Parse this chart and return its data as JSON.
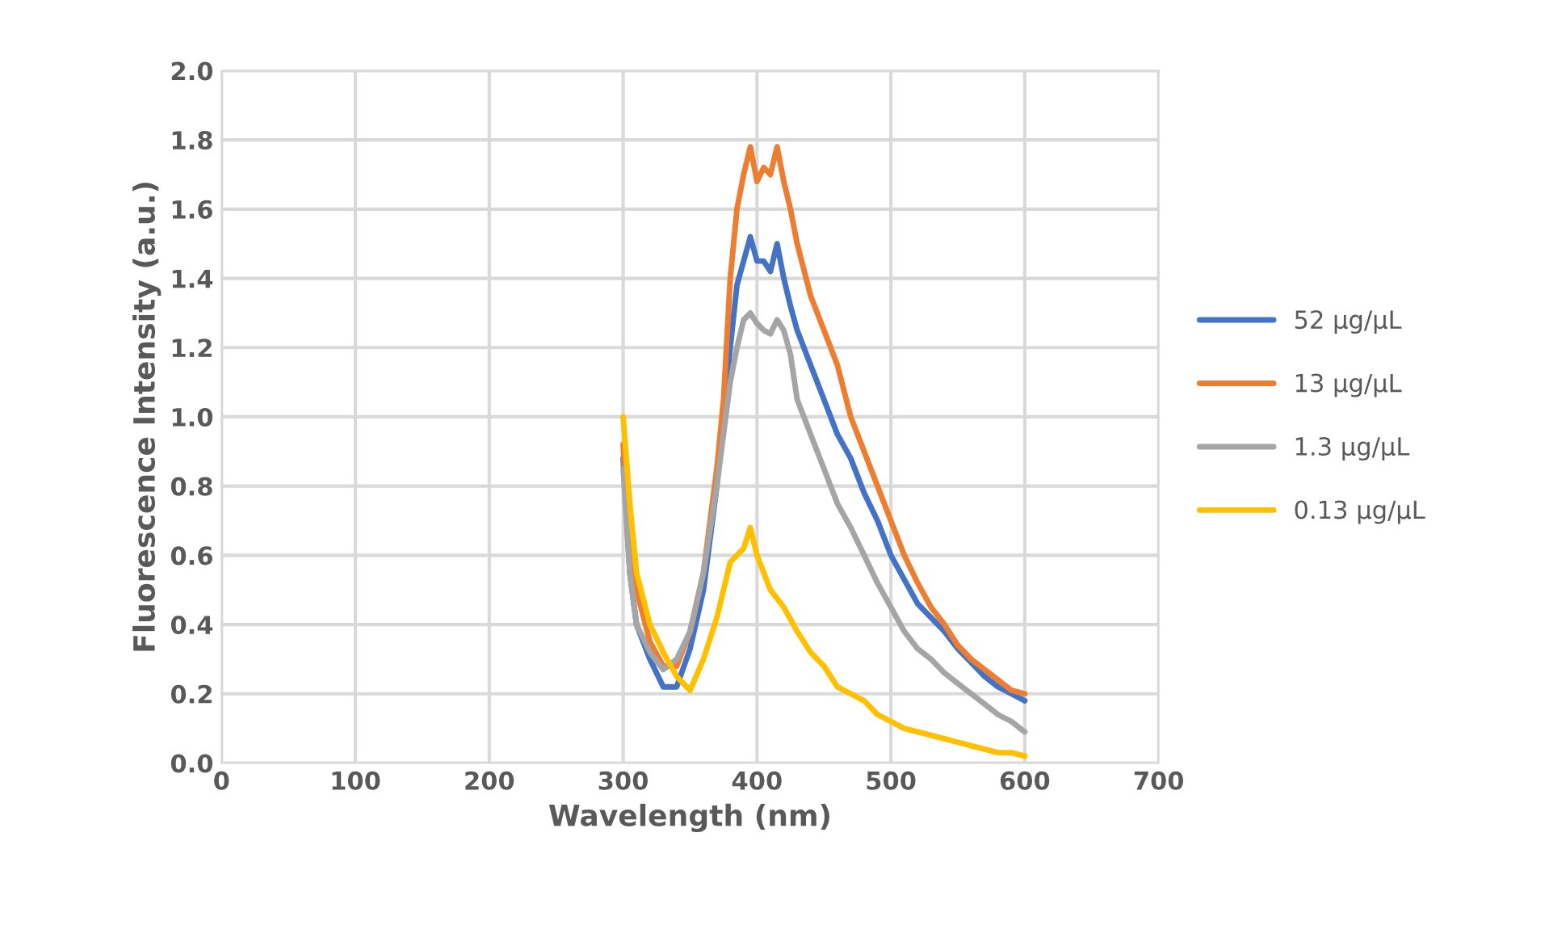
{
  "chart_data": {
    "type": "line",
    "xlabel": "Wavelength (nm)",
    "ylabel": "Fluorescence Intensity (a.u.)",
    "xlim": [
      0,
      700
    ],
    "xticks": [
      0,
      100,
      200,
      300,
      400,
      500,
      600,
      700
    ],
    "ylim": [
      0,
      2.0
    ],
    "yticks": [
      {
        "value": 0,
        "label": "0.0"
      },
      {
        "value": 0.2,
        "label": "0.2"
      },
      {
        "value": 0.4,
        "label": "0.4"
      },
      {
        "value": 0.6,
        "label": "0.6"
      },
      {
        "value": 0.8,
        "label": "0.8"
      },
      {
        "value": 1.0,
        "label": "1.0"
      },
      {
        "value": 1.2,
        "label": "1.2"
      },
      {
        "value": 1.4,
        "label": "1.4"
      },
      {
        "value": 1.6,
        "label": "1.6"
      },
      {
        "value": 1.8,
        "label": "1.8"
      },
      {
        "value": 2.0,
        "label": "2.0"
      }
    ],
    "grid": true,
    "legend": "right",
    "marker": "none",
    "line_style": "solid",
    "series": [
      {
        "name": "52 µg/µL",
        "color": "#4472c4",
        "x": [
          300,
          305,
          310,
          320,
          330,
          340,
          350,
          360,
          370,
          380,
          385,
          390,
          395,
          400,
          405,
          410,
          415,
          420,
          425,
          430,
          440,
          450,
          460,
          470,
          480,
          490,
          500,
          510,
          520,
          530,
          540,
          550,
          560,
          570,
          580,
          590,
          600
        ],
        "values": [
          0.88,
          0.55,
          0.4,
          0.3,
          0.22,
          0.22,
          0.33,
          0.5,
          0.8,
          1.2,
          1.38,
          1.45,
          1.52,
          1.45,
          1.45,
          1.42,
          1.5,
          1.4,
          1.32,
          1.25,
          1.15,
          1.05,
          0.95,
          0.88,
          0.78,
          0.7,
          0.6,
          0.53,
          0.46,
          0.42,
          0.38,
          0.33,
          0.29,
          0.25,
          0.22,
          0.2,
          0.18
        ]
      },
      {
        "name": "13 µg/µL",
        "color": "#ed7d31",
        "x": [
          300,
          305,
          310,
          320,
          330,
          340,
          350,
          360,
          370,
          375,
          380,
          385,
          390,
          395,
          400,
          405,
          410,
          415,
          420,
          425,
          430,
          440,
          450,
          460,
          470,
          480,
          490,
          500,
          510,
          520,
          530,
          540,
          550,
          560,
          570,
          580,
          590,
          600
        ],
        "values": [
          0.92,
          0.6,
          0.5,
          0.35,
          0.28,
          0.28,
          0.38,
          0.55,
          0.85,
          1.05,
          1.4,
          1.6,
          1.7,
          1.78,
          1.68,
          1.72,
          1.7,
          1.78,
          1.68,
          1.6,
          1.5,
          1.35,
          1.25,
          1.15,
          1.0,
          0.9,
          0.8,
          0.7,
          0.6,
          0.52,
          0.45,
          0.4,
          0.34,
          0.3,
          0.27,
          0.24,
          0.21,
          0.2
        ]
      },
      {
        "name": "1.3 µg/µL",
        "color": "#a5a5a5",
        "x": [
          300,
          305,
          310,
          320,
          330,
          340,
          350,
          360,
          370,
          380,
          385,
          390,
          395,
          400,
          405,
          410,
          415,
          420,
          425,
          430,
          440,
          450,
          460,
          470,
          480,
          490,
          500,
          510,
          520,
          530,
          540,
          550,
          560,
          570,
          580,
          590,
          600
        ],
        "values": [
          0.85,
          0.55,
          0.4,
          0.32,
          0.27,
          0.3,
          0.38,
          0.55,
          0.8,
          1.1,
          1.2,
          1.28,
          1.3,
          1.27,
          1.25,
          1.24,
          1.28,
          1.25,
          1.18,
          1.05,
          0.95,
          0.85,
          0.75,
          0.68,
          0.6,
          0.52,
          0.45,
          0.38,
          0.33,
          0.3,
          0.26,
          0.23,
          0.2,
          0.17,
          0.14,
          0.12,
          0.09
        ]
      },
      {
        "name": "0.13 µg/µL",
        "color": "#ffc000",
        "x": [
          300,
          305,
          310,
          320,
          330,
          340,
          350,
          360,
          370,
          380,
          390,
          395,
          400,
          410,
          420,
          430,
          440,
          450,
          460,
          470,
          480,
          490,
          500,
          510,
          520,
          530,
          540,
          550,
          560,
          570,
          580,
          590,
          600
        ],
        "values": [
          1.0,
          0.75,
          0.55,
          0.4,
          0.32,
          0.25,
          0.21,
          0.3,
          0.42,
          0.58,
          0.62,
          0.68,
          0.6,
          0.5,
          0.45,
          0.38,
          0.32,
          0.28,
          0.22,
          0.2,
          0.18,
          0.14,
          0.12,
          0.1,
          0.09,
          0.08,
          0.07,
          0.06,
          0.05,
          0.04,
          0.03,
          0.03,
          0.02
        ]
      }
    ]
  }
}
